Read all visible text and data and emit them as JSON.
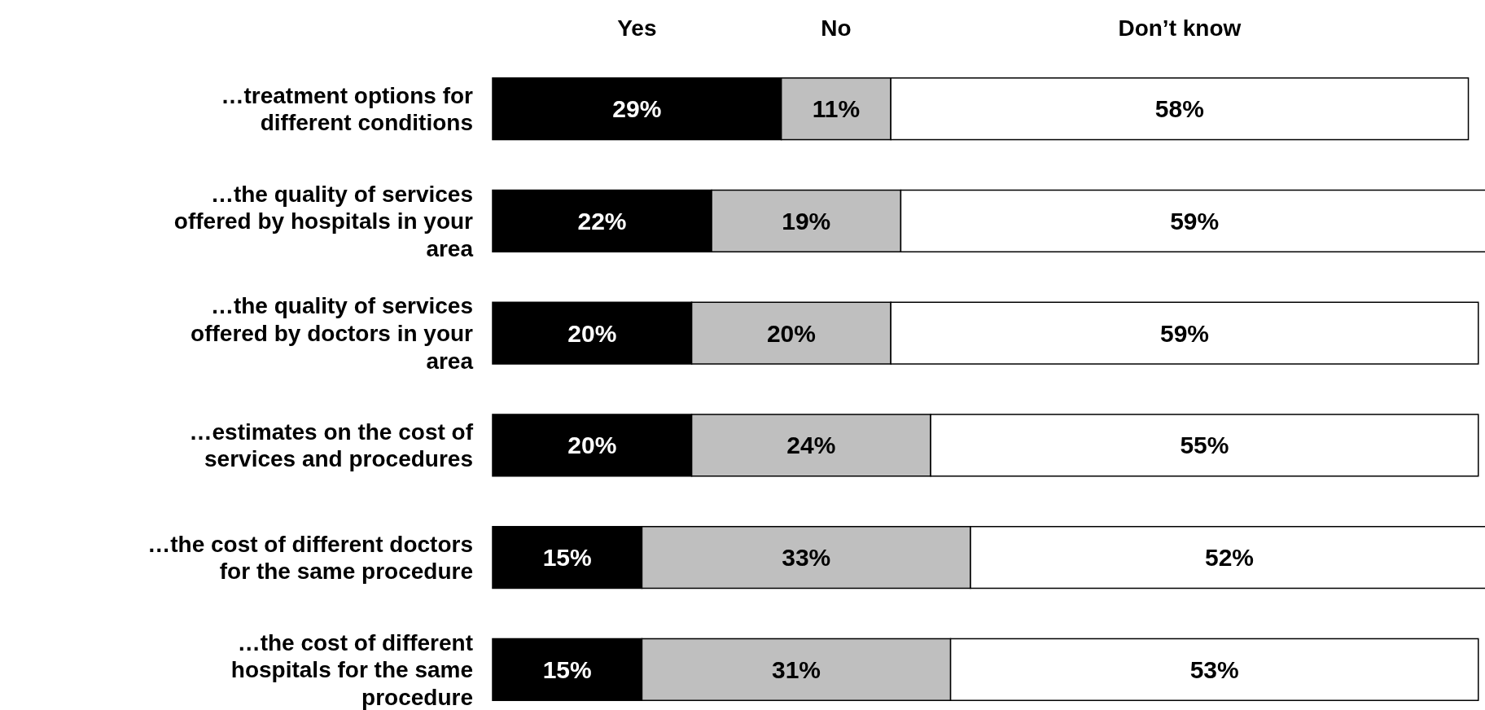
{
  "chart_data": {
    "type": "bar",
    "orientation": "horizontal",
    "stacked": true,
    "legend": "top",
    "categories": [
      "…treatment options for different conditions",
      "…the quality of services offered by hospitals in your area",
      "…the quality of services offered by doctors in your area",
      "…estimates on the cost of services and procedures",
      "…the cost of different doctors for the same procedure",
      "…the cost of different hospitals for the same procedure"
    ],
    "series": [
      {
        "name": "Yes",
        "color": "#000000",
        "values": [
          29,
          22,
          20,
          20,
          15,
          15
        ],
        "value_labels": [
          "29%",
          "22%",
          "20%",
          "20%",
          "15%",
          "15%"
        ]
      },
      {
        "name": "No",
        "color": "#bfbfbf",
        "values": [
          11,
          19,
          20,
          24,
          33,
          31
        ],
        "value_labels": [
          "11%",
          "19%",
          "20%",
          "24%",
          "33%",
          "31%"
        ]
      },
      {
        "name": "Don’t know",
        "color": "#ffffff",
        "values": [
          58,
          59,
          59,
          55,
          52,
          53
        ],
        "value_labels": [
          "58%",
          "59%",
          "59%",
          "55%",
          "52%",
          "53%"
        ]
      }
    ]
  }
}
